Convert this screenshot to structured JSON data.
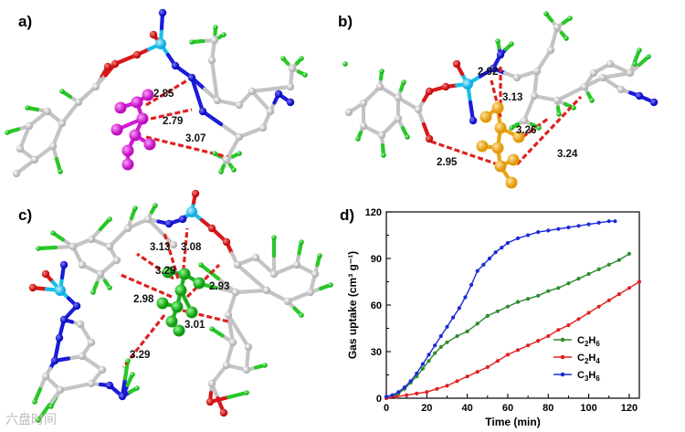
{
  "figure": {
    "watermark": "六盘时间"
  },
  "panels": {
    "a": {
      "label": "a)",
      "distances": [
        "2.85",
        "2.79",
        "3.07"
      ]
    },
    "b": {
      "label": "b)",
      "distances": [
        "2.92",
        "3.13",
        "3.26",
        "3.24",
        "2.95"
      ]
    },
    "c": {
      "label": "c)",
      "distances": [
        "3.13",
        "3.08",
        "3.29",
        "2.98",
        "2.93",
        "3.01",
        "3.29"
      ]
    },
    "d": {
      "label": "d)"
    }
  },
  "colors": {
    "carbon": "#c8c8c8",
    "hydrogen": "#22cc22",
    "nitrogen": "#1a1aee",
    "oxygen": "#e01b1b",
    "metal": "#1ec8ee",
    "guest_a": "#e020e0",
    "guest_b": "#f5b51e",
    "guest_c": "#22bb22",
    "contact": "#e02020",
    "C2H6": "#2e8b2e",
    "C2H4": "#e02020",
    "C3H6": "#1a2bd6"
  },
  "chart_data": {
    "type": "line",
    "xlabel": "Time (min)",
    "ylabel": "Gas uptake (cm³ g⁻¹)",
    "xlim": [
      0,
      125
    ],
    "ylim": [
      0,
      120
    ],
    "xticks": [
      0,
      20,
      40,
      60,
      80,
      100,
      120
    ],
    "yticks": [
      0,
      30,
      60,
      90,
      120
    ],
    "legend_position": "bottom-right",
    "series": [
      {
        "name": "C2H6",
        "color": "#2e8b2e",
        "x": [
          0,
          3,
          6,
          9,
          12,
          15,
          18,
          21,
          24,
          27,
          30,
          35,
          40,
          45,
          50,
          55,
          60,
          65,
          70,
          75,
          80,
          85,
          90,
          95,
          100,
          105,
          110,
          115,
          120
        ],
        "y": [
          1,
          1.5,
          3,
          6,
          10,
          14,
          19,
          24,
          29,
          33,
          36,
          40,
          43,
          48,
          53,
          56,
          59,
          62,
          64,
          66,
          69,
          71,
          74,
          77,
          80,
          83,
          86,
          89,
          93
        ]
      },
      {
        "name": "C2H4",
        "color": "#e02020",
        "x": [
          0,
          5,
          10,
          15,
          20,
          25,
          30,
          35,
          40,
          45,
          50,
          55,
          60,
          65,
          70,
          75,
          80,
          85,
          90,
          95,
          100,
          105,
          110,
          115,
          120,
          125
        ],
        "y": [
          0,
          1,
          2,
          3,
          4,
          6,
          8,
          11,
          14,
          17,
          20,
          24,
          28,
          31,
          34,
          37,
          40,
          44,
          47,
          51,
          55,
          59,
          63,
          67,
          71,
          75
        ]
      },
      {
        "name": "C3H6",
        "color": "#1a2bd6",
        "x": [
          0,
          3,
          6,
          9,
          12,
          15,
          18,
          21,
          24,
          27,
          30,
          33,
          36,
          39,
          42,
          45,
          48,
          51,
          54,
          57,
          60,
          65,
          70,
          75,
          80,
          85,
          90,
          95,
          100,
          105,
          110,
          113
        ],
        "y": [
          1,
          2,
          4,
          7,
          11,
          16,
          22,
          28,
          34,
          40,
          46,
          52,
          58,
          65,
          73,
          82,
          86,
          90,
          94,
          97,
          100,
          103,
          105,
          107,
          108,
          109,
          110,
          111,
          112,
          113,
          114,
          114
        ]
      }
    ],
    "legend": [
      "C2H6",
      "C2H4",
      "C3H6"
    ]
  }
}
